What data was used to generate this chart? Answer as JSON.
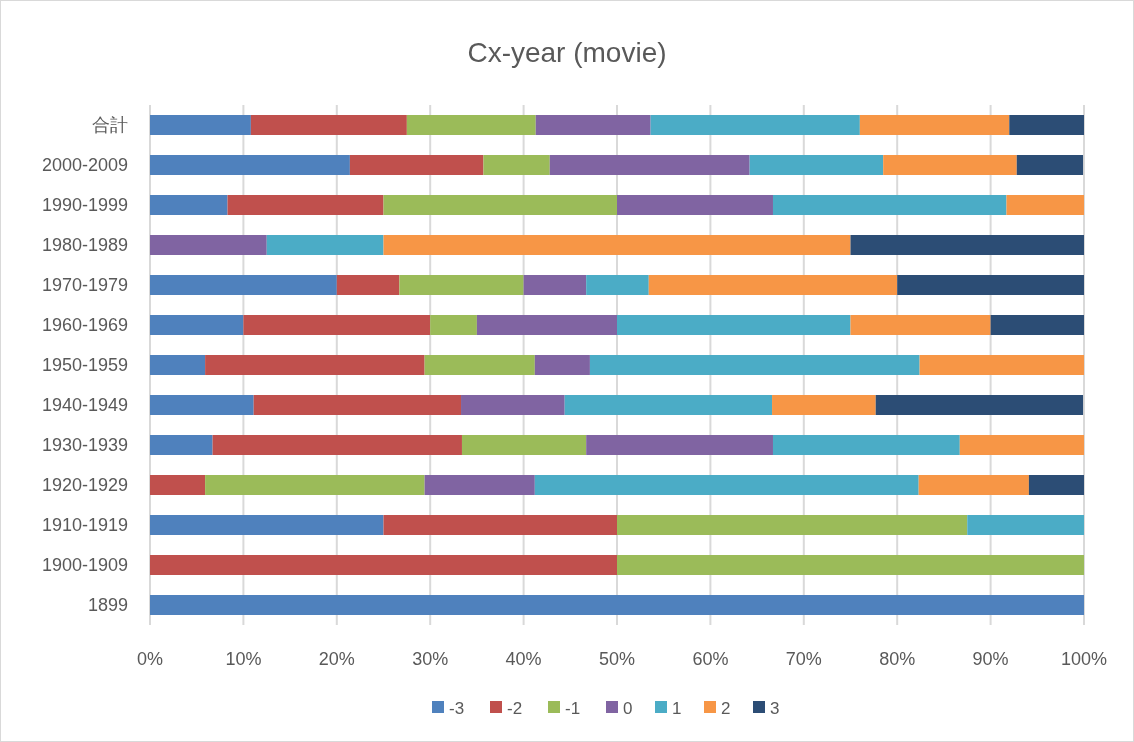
{
  "chart_data": {
    "type": "bar",
    "orientation": "horizontal",
    "stacked": true,
    "title": "Cx-year (movie)",
    "categories": [
      "合計",
      "2000-2009",
      "1990-1999",
      "1980-1989",
      "1970-1979",
      "1960-1969",
      "1950-1959",
      "1940-1949",
      "1930-1939",
      "1920-1929",
      "1910-1919",
      "1900-1909",
      "1899"
    ],
    "series": [
      {
        "name": "-3",
        "color": "#4f81bd",
        "values": [
          10.8,
          21.4,
          8.3,
          0,
          20,
          10,
          5.9,
          11.1,
          6.7,
          0,
          25,
          0,
          100
        ]
      },
      {
        "name": "-2",
        "color": "#c0504d",
        "values": [
          16.7,
          14.3,
          16.7,
          0,
          6.7,
          20,
          23.5,
          22.2,
          26.7,
          5.9,
          25,
          50,
          0
        ]
      },
      {
        "name": "-1",
        "color": "#9bbb59",
        "values": [
          13.8,
          7.1,
          25,
          0,
          13.3,
          5,
          11.8,
          0,
          13.3,
          23.5,
          37.5,
          50,
          0
        ]
      },
      {
        "name": "0",
        "color": "#8064a2",
        "values": [
          12.3,
          21.4,
          16.7,
          12.5,
          6.7,
          15,
          5.9,
          11.1,
          20,
          11.8,
          0,
          0,
          0
        ]
      },
      {
        "name": "1",
        "color": "#4bacc6",
        "values": [
          22.4,
          14.3,
          25,
          12.5,
          6.7,
          25,
          35.3,
          22.2,
          20,
          41.1,
          12.5,
          0,
          0
        ]
      },
      {
        "name": "2",
        "color": "#f79646",
        "values": [
          16,
          14.3,
          8.3,
          50,
          26.6,
          15,
          17.6,
          11.1,
          13.3,
          11.8,
          0,
          0,
          0
        ]
      },
      {
        "name": "3",
        "color": "#2c4d75",
        "values": [
          8,
          7.1,
          0,
          25,
          20,
          10,
          0,
          22.2,
          0,
          5.9,
          0,
          0,
          0
        ]
      }
    ],
    "xlim": [
      0,
      100
    ],
    "xticks": [
      {
        "value": 0,
        "label": "0%"
      },
      {
        "value": 10,
        "label": "10%"
      },
      {
        "value": 20,
        "label": "20%"
      },
      {
        "value": 30,
        "label": "30%"
      },
      {
        "value": 40,
        "label": "40%"
      },
      {
        "value": 50,
        "label": "50%"
      },
      {
        "value": 60,
        "label": "60%"
      },
      {
        "value": 70,
        "label": "70%"
      },
      {
        "value": 80,
        "label": "80%"
      },
      {
        "value": 90,
        "label": "90%"
      },
      {
        "value": 100,
        "label": "100%"
      }
    ],
    "grid": "x",
    "legend": "bottom"
  }
}
